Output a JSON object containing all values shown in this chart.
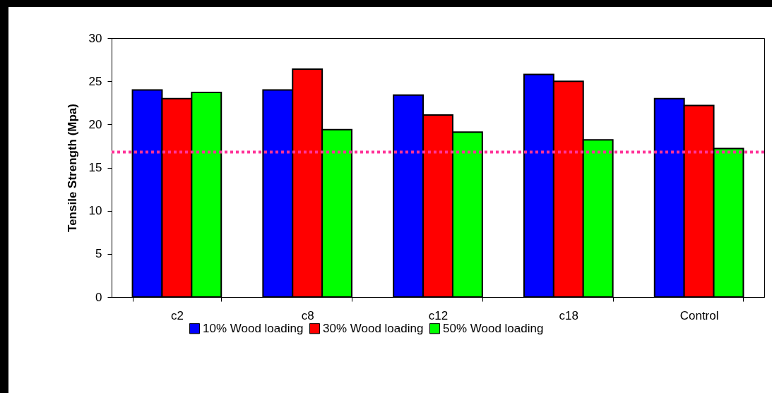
{
  "chart_data": {
    "type": "bar",
    "ylabel": "Tensile Strength (Mpa)",
    "categories": [
      "c2",
      "c8",
      "c12",
      "c18",
      "Control"
    ],
    "series": [
      {
        "name": "10% Wood loading",
        "color": "#0000ff",
        "values": [
          24.0,
          24.0,
          23.4,
          25.8,
          23.0
        ]
      },
      {
        "name": "30% Wood loading",
        "color": "#ff0000",
        "values": [
          23.0,
          26.4,
          21.1,
          25.0,
          22.2
        ]
      },
      {
        "name": "50% Wood loading",
        "color": "#00ff00",
        "values": [
          23.7,
          19.4,
          19.1,
          18.2,
          17.2
        ]
      }
    ],
    "ylim": [
      0,
      30
    ],
    "yticks": [
      0,
      5,
      10,
      15,
      20,
      25,
      30
    ],
    "ref_lines": [
      {
        "axis": "y",
        "value": 16.8,
        "color": "#ff3399",
        "line_style": "dotted"
      }
    ],
    "grid": false,
    "legend": "bottom"
  }
}
